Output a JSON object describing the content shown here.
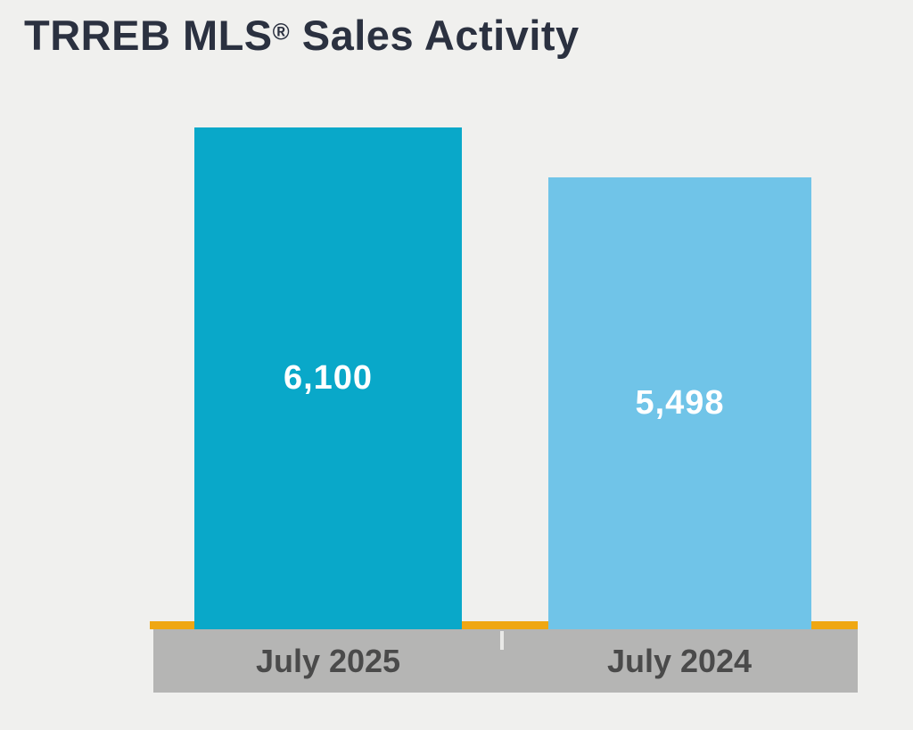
{
  "title": {
    "prefix": "TRREB MLS",
    "registered": "®",
    "suffix": " Sales Activity"
  },
  "chart_data": {
    "type": "bar",
    "title": "TRREB MLS® Sales Activity",
    "categories": [
      "July 2025",
      "July 2024"
    ],
    "values": [
      6100,
      5498
    ],
    "value_labels": [
      "6,100",
      "5,498"
    ],
    "xlabel": "",
    "ylabel": "",
    "ylim": [
      0,
      6100
    ],
    "grid": false,
    "legend": "none",
    "value_label_position": "inside-center",
    "bar_colors": [
      "#09A8C9",
      "#70C4E8"
    ],
    "baseline_color": "#EFA713",
    "axis_band_color": "#B5B5B4",
    "value_label_color": "#FFFFFF",
    "category_label_color": "#4A4A4A",
    "title_color": "#2B3140",
    "background_color": "#F0F0EE"
  }
}
